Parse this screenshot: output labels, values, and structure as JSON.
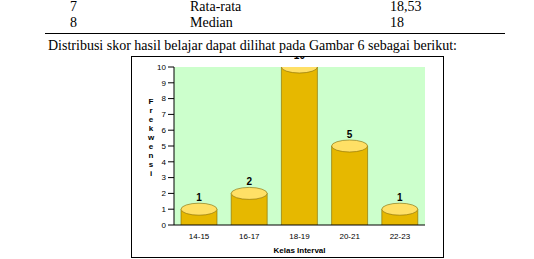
{
  "table": {
    "rows": [
      [
        "7",
        "Rata-rata",
        "18,53"
      ],
      [
        "8",
        "Median",
        "18"
      ]
    ]
  },
  "caption": "Distribusi skor hasil belajar dapat dilihat pada Gambar 6 sebagai berikut:",
  "chart_data": {
    "type": "bar",
    "categories": [
      "14-15",
      "16-17",
      "18-19",
      "20-21",
      "22-23"
    ],
    "values": [
      1,
      2,
      10,
      5,
      1
    ],
    "color": "#e6b800",
    "ylim": [
      0,
      10
    ],
    "yticks": [
      0,
      1,
      2,
      3,
      4,
      5,
      6,
      7,
      8,
      9,
      10
    ],
    "grid": false,
    "data_labels": true,
    "y_label": "Frekwensi",
    "x_label": "Kelas Interval"
  }
}
